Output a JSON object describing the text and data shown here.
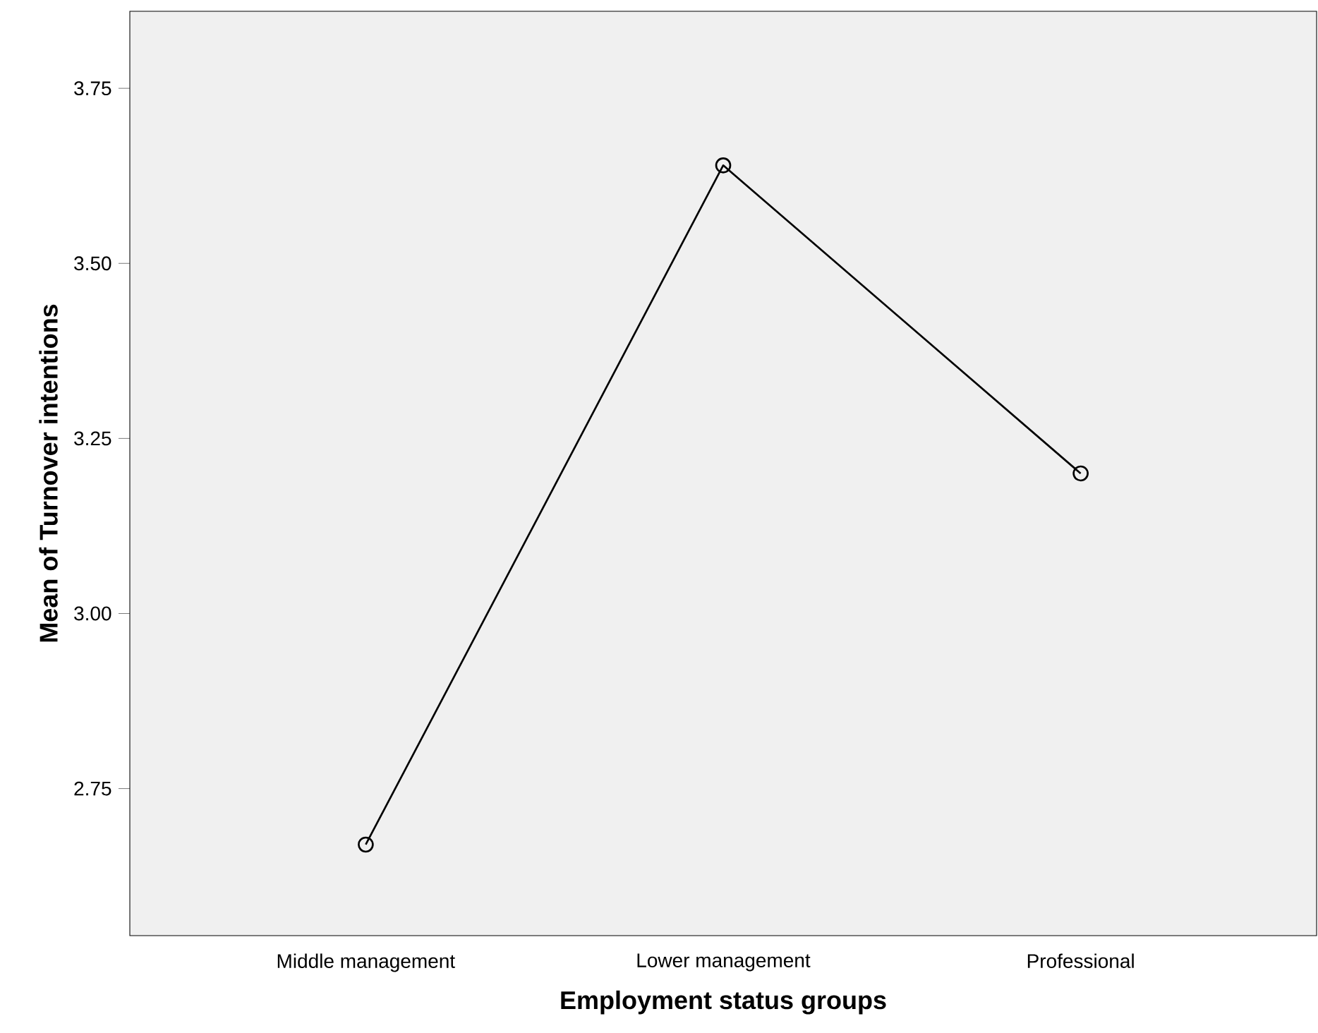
{
  "chart_data": {
    "type": "line",
    "xlabel": "Employment status groups",
    "ylabel": "Mean of Turnover intentions",
    "categories": [
      "Middle management",
      "Lower management",
      "Professional"
    ],
    "values": [
      2.67,
      3.64,
      3.2
    ],
    "color": "#000000",
    "marker": "circle",
    "line_style": "solid",
    "ylim": [
      2.54,
      3.86
    ],
    "yticks": [
      {
        "value": 2.75,
        "label": "2.75"
      },
      {
        "value": 3.0,
        "label": "3.00"
      },
      {
        "value": 3.25,
        "label": "3.25"
      },
      {
        "value": 3.5,
        "label": "3.50"
      },
      {
        "value": 3.75,
        "label": "3.75"
      }
    ],
    "grid": false
  }
}
